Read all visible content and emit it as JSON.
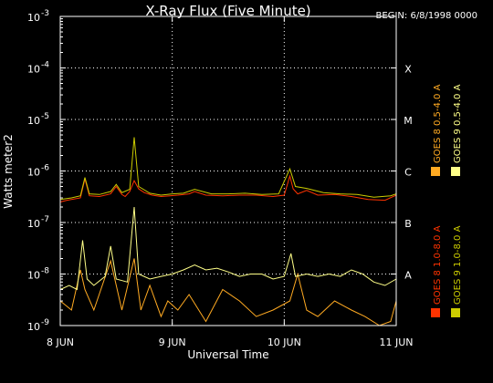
{
  "chart_data": {
    "type": "line",
    "title": "X-Ray Flux (Five Minute)",
    "begin_label": "BEGIN: 6/8/1998 0000",
    "xlabel": "Universal Time",
    "ylabel": "Watts meter2",
    "y_scale": "log",
    "ylim": [
      1e-09,
      0.001
    ],
    "xlim": [
      0,
      3
    ],
    "x_unit": "days since 8 JUN 1998 00:00 UT",
    "x_ticks": [
      {
        "value": 0,
        "label": "8 JUN"
      },
      {
        "value": 1,
        "label": "9 JUN"
      },
      {
        "value": 2,
        "label": "10 JUN"
      },
      {
        "value": 3,
        "label": "11 JUN"
      }
    ],
    "y_ticks": [
      {
        "exp": -3,
        "label": "10",
        "sup": "-3"
      },
      {
        "exp": -4,
        "label": "10",
        "sup": "-4"
      },
      {
        "exp": -5,
        "label": "10",
        "sup": "-5"
      },
      {
        "exp": -6,
        "label": "10",
        "sup": "-6"
      },
      {
        "exp": -7,
        "label": "10",
        "sup": "-7"
      },
      {
        "exp": -8,
        "label": "10",
        "sup": "-8"
      },
      {
        "exp": -9,
        "label": "10",
        "sup": "-9"
      }
    ],
    "flare_classes": [
      {
        "label": "X",
        "exp": -4
      },
      {
        "label": "M",
        "exp": -5
      },
      {
        "label": "C",
        "exp": -6
      },
      {
        "label": "B",
        "exp": -7
      },
      {
        "label": "A",
        "exp": -8
      }
    ],
    "grid": "dotted, horizontal at each decade, vertical at each day",
    "legend_placement": "right, vertical text",
    "series": [
      {
        "name": "GOES 8 1.0-8.0 A",
        "color": "#ff3300",
        "x": [
          0,
          0.06,
          0.18,
          0.22,
          0.26,
          0.35,
          0.45,
          0.5,
          0.55,
          0.58,
          0.62,
          0.66,
          0.7,
          0.75,
          0.82,
          0.9,
          0.98,
          1.05,
          1.15,
          1.2,
          1.3,
          1.45,
          1.6,
          1.75,
          1.9,
          2.0,
          2.05,
          2.08,
          2.12,
          2.2,
          2.3,
          2.45,
          2.6,
          2.75,
          2.9,
          3.0
        ],
        "y": [
          2.5e-07,
          2.7e-07,
          3e-07,
          7e-07,
          3.3e-07,
          3.2e-07,
          3.6e-07,
          5e-07,
          3.5e-07,
          3.2e-07,
          4e-07,
          6.5e-07,
          4.5e-07,
          3.8e-07,
          3.4e-07,
          3.2e-07,
          3.3e-07,
          3.4e-07,
          3.6e-07,
          4e-07,
          3.4e-07,
          3.3e-07,
          3.4e-07,
          3.4e-07,
          3.2e-07,
          3.4e-07,
          8e-07,
          4.5e-07,
          3.6e-07,
          4.2e-07,
          3.4e-07,
          3.5e-07,
          3.2e-07,
          2.8e-07,
          2.7e-07,
          3.4e-07
        ]
      },
      {
        "name": "GOES 8 0.5-4.0 A",
        "color": "#ffaa22",
        "x": [
          0,
          0.1,
          0.18,
          0.22,
          0.3,
          0.45,
          0.55,
          0.66,
          0.72,
          0.8,
          0.9,
          0.96,
          1.05,
          1.15,
          1.3,
          1.45,
          1.6,
          1.75,
          1.9,
          2.05,
          2.12,
          2.2,
          2.3,
          2.45,
          2.6,
          2.72,
          2.85,
          2.95,
          3.0
        ],
        "y": [
          3e-09,
          2e-09,
          1.2e-08,
          5e-09,
          2e-09,
          1.8e-08,
          2e-09,
          2e-08,
          2e-09,
          6e-09,
          1.5e-09,
          3e-09,
          2e-09,
          4e-09,
          1.2e-09,
          5e-09,
          3e-09,
          1.5e-09,
          2e-09,
          3e-09,
          1e-08,
          2e-09,
          1.5e-09,
          3e-09,
          2e-09,
          1.5e-09,
          1e-09,
          1.2e-09,
          3e-09
        ]
      },
      {
        "name": "GOES 9 1.0-8.0 A",
        "color": "#cccc00",
        "x": [
          0,
          0.1,
          0.18,
          0.22,
          0.26,
          0.35,
          0.45,
          0.5,
          0.55,
          0.62,
          0.66,
          0.7,
          0.8,
          0.9,
          1.0,
          1.1,
          1.2,
          1.35,
          1.5,
          1.65,
          1.8,
          1.95,
          2.05,
          2.1,
          2.2,
          2.35,
          2.5,
          2.65,
          2.8,
          2.95,
          3.0
        ],
        "y": [
          2.8e-07,
          3e-07,
          3.3e-07,
          7.5e-07,
          3.6e-07,
          3.5e-07,
          4e-07,
          5.5e-07,
          3.8e-07,
          4.4e-07,
          4.5e-06,
          5e-07,
          3.7e-07,
          3.4e-07,
          3.6e-07,
          3.7e-07,
          4.4e-07,
          3.6e-07,
          3.6e-07,
          3.7e-07,
          3.5e-07,
          3.6e-07,
          1.1e-06,
          5e-07,
          4.6e-07,
          3.8e-07,
          3.6e-07,
          3.5e-07,
          3.1e-07,
          3.3e-07,
          3.6e-07
        ]
      },
      {
        "name": "GOES 9 0.5-4.0 A",
        "color": "#ffff88",
        "x": [
          0,
          0.08,
          0.15,
          0.2,
          0.24,
          0.3,
          0.4,
          0.45,
          0.5,
          0.6,
          0.66,
          0.7,
          0.8,
          0.9,
          1.0,
          1.1,
          1.2,
          1.3,
          1.4,
          1.5,
          1.6,
          1.7,
          1.8,
          1.9,
          2.0,
          2.06,
          2.1,
          2.2,
          2.3,
          2.4,
          2.5,
          2.6,
          2.7,
          2.8,
          2.9,
          3.0
        ],
        "y": [
          5e-09,
          6e-09,
          5e-09,
          4.5e-08,
          8e-09,
          6e-09,
          9e-09,
          3.5e-08,
          8e-09,
          7e-09,
          2e-07,
          1e-08,
          8e-09,
          9e-09,
          1e-08,
          1.2e-08,
          1.5e-08,
          1.2e-08,
          1.3e-08,
          1.1e-08,
          9e-09,
          1e-08,
          1e-08,
          8e-09,
          9e-09,
          2.5e-08,
          9e-09,
          1e-08,
          9e-09,
          1e-08,
          9e-09,
          1.2e-08,
          1e-08,
          7e-09,
          6e-09,
          8e-09
        ]
      }
    ]
  }
}
